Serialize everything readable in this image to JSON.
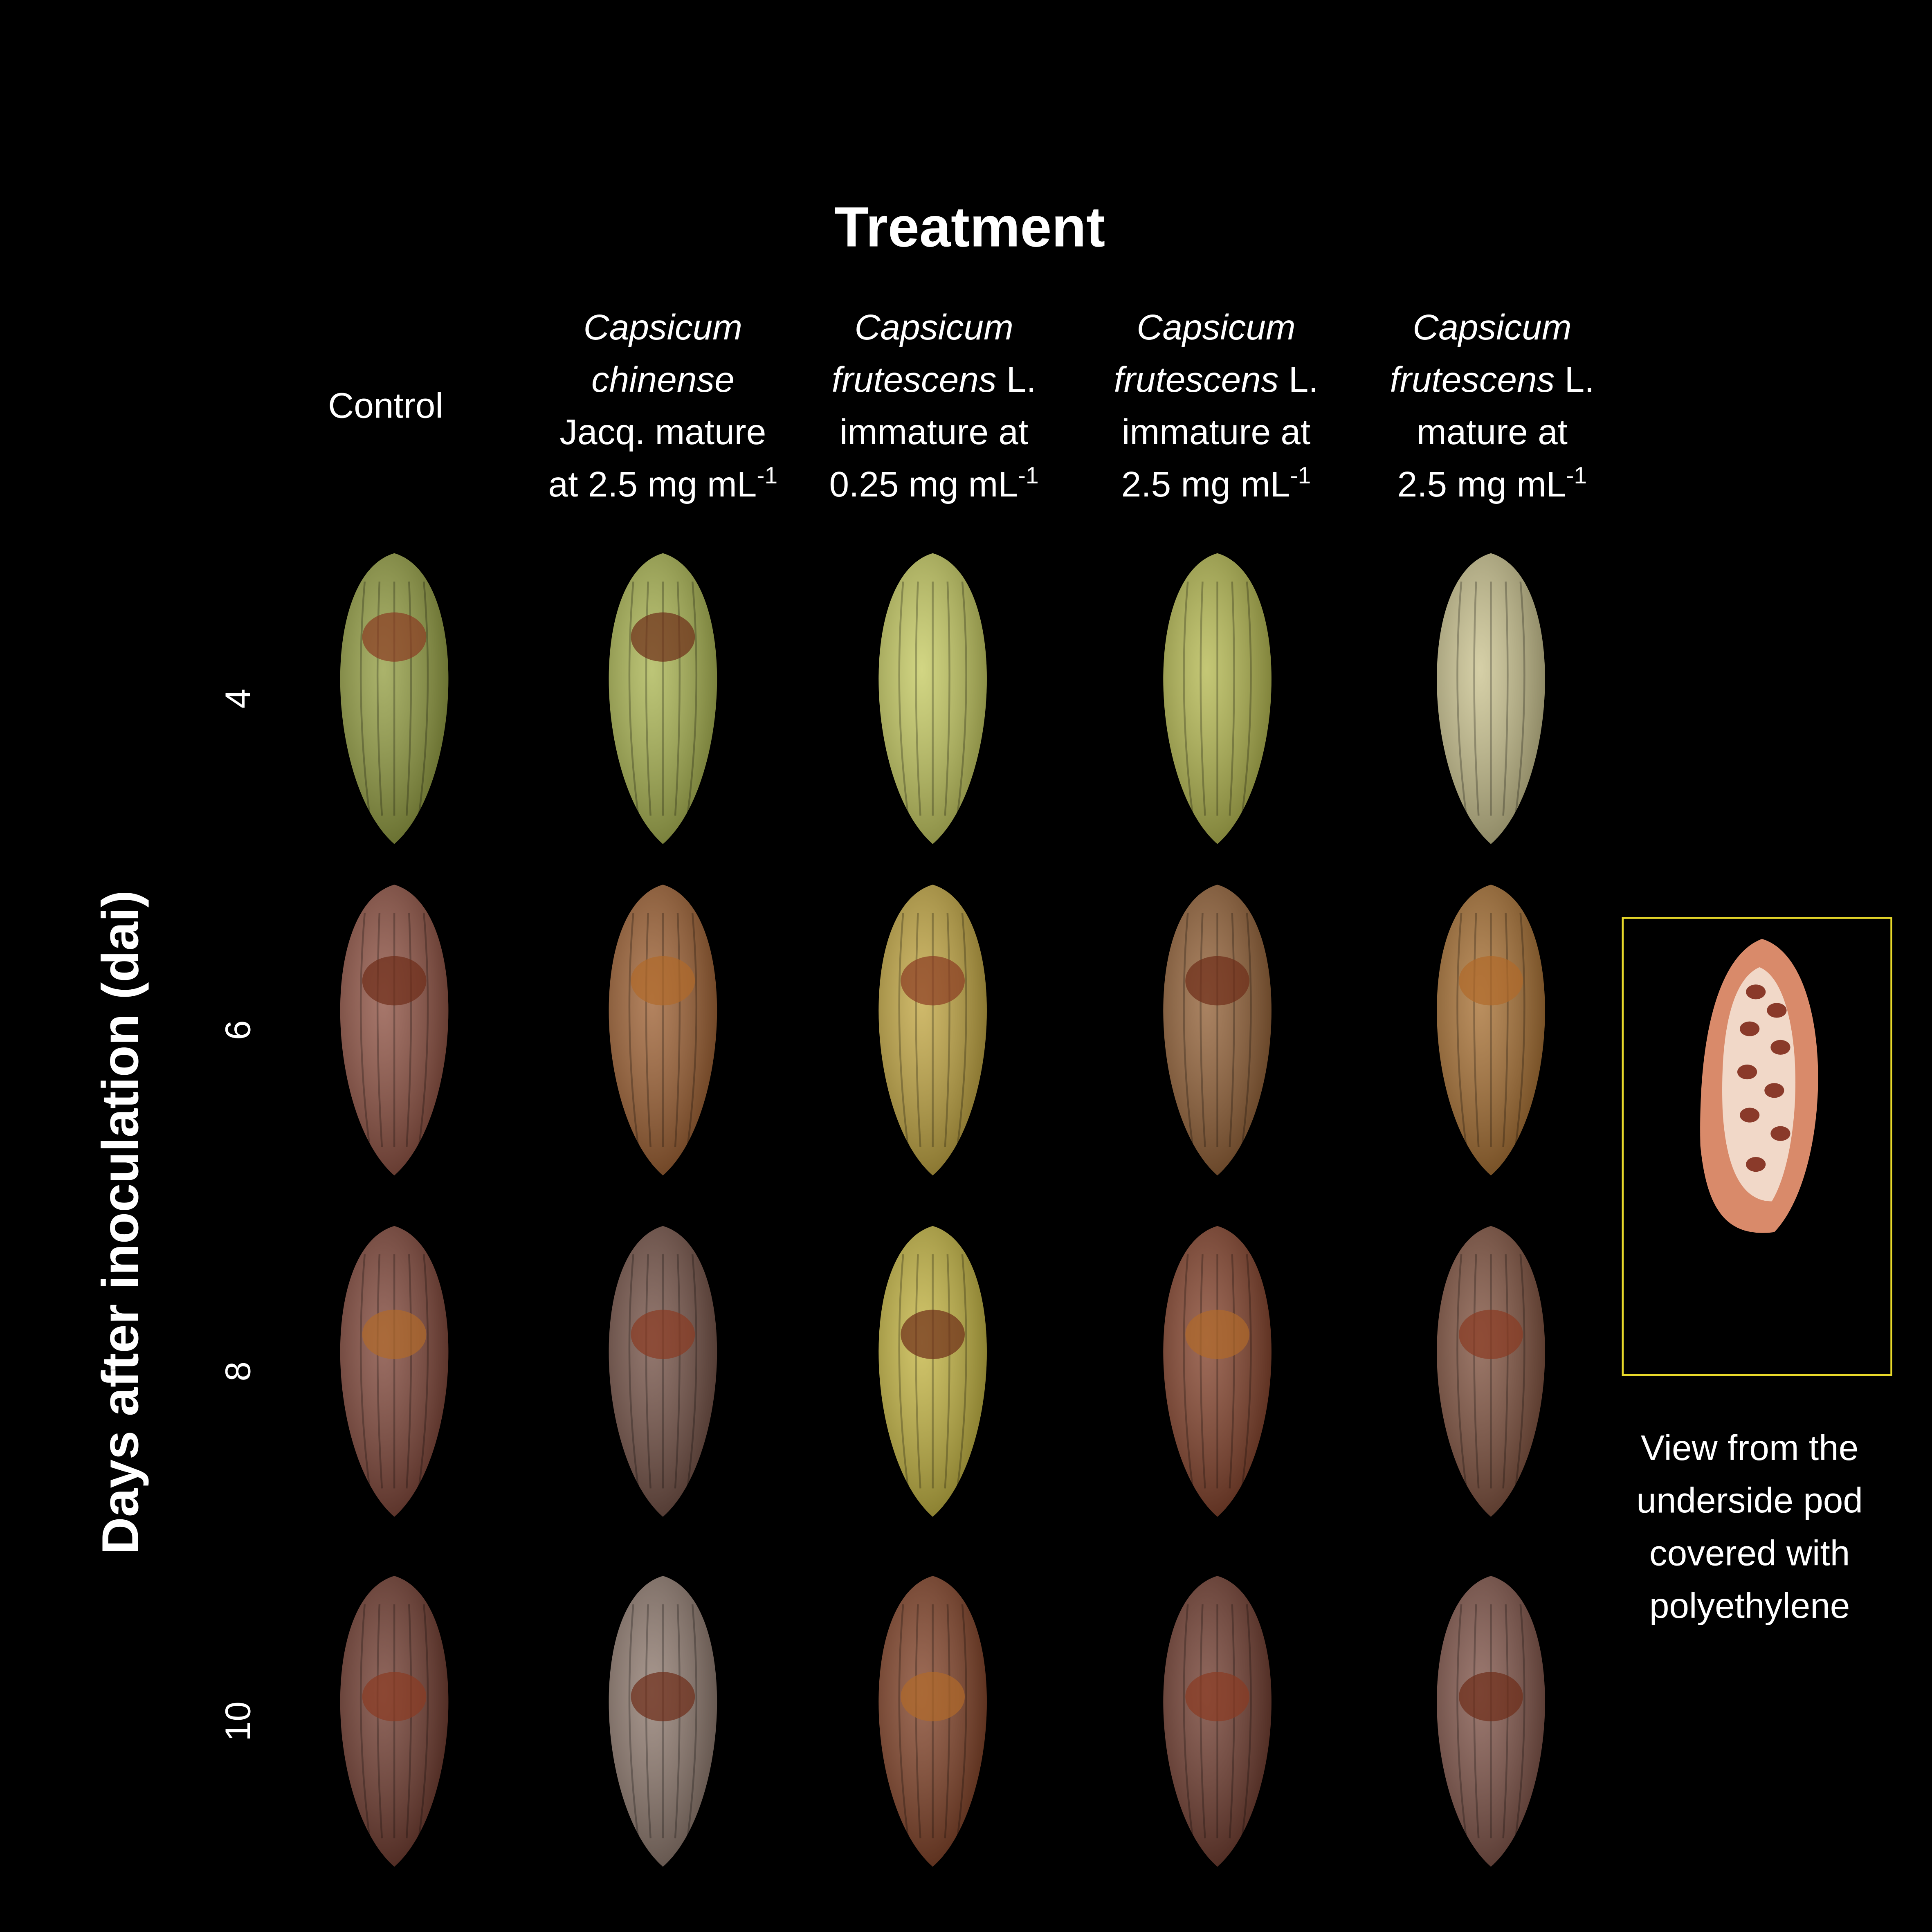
{
  "header": {
    "title": "Treatment"
  },
  "y_axis_label": "Days after inoculation (dai)",
  "columns": [
    {
      "lines": [
        [
          {
            "text": "Control"
          }
        ]
      ]
    },
    {
      "lines": [
        [
          {
            "text": "Capsicum",
            "italic": true
          }
        ],
        [
          {
            "text": "chinense",
            "italic": true
          }
        ],
        [
          {
            "text": "Jacq. mature"
          }
        ],
        [
          {
            "text": "at 2.5 mg mL"
          },
          {
            "text": "-1",
            "sup": true
          }
        ]
      ]
    },
    {
      "lines": [
        [
          {
            "text": "Capsicum",
            "italic": true
          }
        ],
        [
          {
            "text": "frutescens",
            "italic": true
          },
          {
            "text": " L."
          }
        ],
        [
          {
            "text": "immature at"
          }
        ],
        [
          {
            "text": "0.25 mg mL"
          },
          {
            "text": "-1",
            "sup": true
          }
        ]
      ]
    },
    {
      "lines": [
        [
          {
            "text": "Capsicum",
            "italic": true
          }
        ],
        [
          {
            "text": "frutescens",
            "italic": true
          },
          {
            "text": " L."
          }
        ],
        [
          {
            "text": "immature at"
          }
        ],
        [
          {
            "text": "2.5 mg mL"
          },
          {
            "text": "-1",
            "sup": true
          }
        ]
      ]
    },
    {
      "lines": [
        [
          {
            "text": "Capsicum",
            "italic": true
          }
        ],
        [
          {
            "text": "frutescens",
            "italic": true
          },
          {
            "text": " L."
          }
        ],
        [
          {
            "text": "mature at"
          }
        ],
        [
          {
            "text": "2.5 mg mL"
          },
          {
            "text": "-1",
            "sup": true
          }
        ]
      ]
    }
  ],
  "rows": [
    "4",
    "6",
    "8",
    "10"
  ],
  "inset": {
    "caption": [
      "View from the",
      "underside pod",
      "covered with",
      "polyethylene"
    ]
  }
}
